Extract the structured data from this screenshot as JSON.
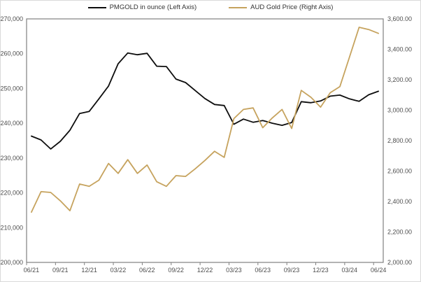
{
  "chart": {
    "legend": [
      {
        "label": "PMGOLD in ounce (Left Axis)",
        "color": "#0d0d0d"
      },
      {
        "label": "AUD Gold Price (Right Axis)",
        "color": "#c6a35e"
      }
    ]
  },
  "chart_data": {
    "type": "line",
    "title": "",
    "xlabel": "",
    "ylabel_left": "",
    "ylabel_right": "",
    "grid": false,
    "legend_position": "top",
    "x": [
      "06/21",
      "07/21",
      "08/21",
      "09/21",
      "10/21",
      "11/21",
      "12/21",
      "01/22",
      "02/22",
      "03/22",
      "04/22",
      "05/22",
      "06/22",
      "07/22",
      "08/22",
      "09/22",
      "10/22",
      "11/22",
      "12/22",
      "01/23",
      "02/23",
      "03/23",
      "04/23",
      "05/23",
      "06/23",
      "07/23",
      "08/23",
      "09/23",
      "10/23",
      "11/23",
      "12/23",
      "01/24",
      "02/24",
      "03/24",
      "04/24",
      "05/24",
      "06/24"
    ],
    "x_tick_labels": [
      "06/21",
      "09/21",
      "12/21",
      "03/22",
      "06/22",
      "09/22",
      "12/22",
      "03/23",
      "06/23",
      "09/23",
      "12/23",
      "03/24",
      "06/24"
    ],
    "x_tick_every": 3,
    "series": [
      {
        "name": "PMGOLD in ounce (Left Axis)",
        "axis": "left",
        "color": "#0d0d0d",
        "values": [
          236300,
          235200,
          232600,
          234800,
          238000,
          242800,
          243400,
          247000,
          250700,
          257100,
          260200,
          259700,
          260100,
          256400,
          256300,
          252700,
          251700,
          249400,
          247100,
          245400,
          245100,
          239700,
          241200,
          240300,
          240800,
          240000,
          239400,
          240200,
          246200,
          245900,
          246400,
          247800,
          248100,
          247000,
          246300,
          248200,
          249200
        ]
      },
      {
        "name": "AUD Gold Price (Right Axis)",
        "axis": "right",
        "color": "#c6a35e",
        "values": [
          2330,
          2465,
          2460,
          2405,
          2340,
          2515,
          2500,
          2540,
          2650,
          2585,
          2675,
          2585,
          2640,
          2530,
          2500,
          2570,
          2565,
          2615,
          2670,
          2730,
          2690,
          2945,
          3005,
          3015,
          2885,
          2950,
          3005,
          2880,
          3130,
          3085,
          3020,
          3115,
          3155,
          3350,
          3545,
          3530,
          3505
        ]
      }
    ],
    "left_axis": {
      "min": 200000,
      "max": 270000,
      "step": 10000,
      "tick_labels": [
        "270,000",
        "260,000",
        "250,000",
        "240,000",
        "230,000",
        "220,000",
        "210,000",
        "200,000"
      ]
    },
    "right_axis": {
      "min": 2000,
      "max": 3600,
      "step": 200,
      "tick_labels": [
        "3,600.00",
        "3,400.00",
        "3,200.00",
        "3,000.00",
        "2,800.00",
        "2,600.00",
        "2,400.00",
        "2,200.00",
        "2,000.00"
      ]
    }
  }
}
